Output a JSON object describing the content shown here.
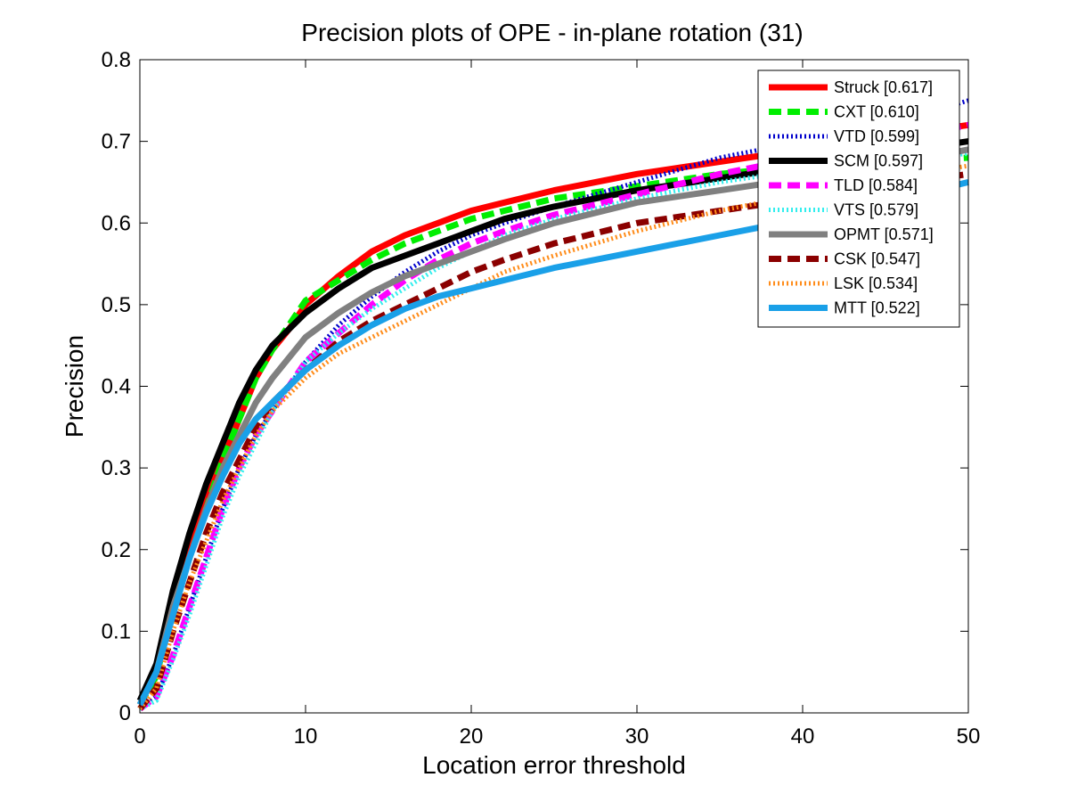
{
  "chart_data": {
    "type": "line",
    "title": "Precision plots of OPE - in-plane rotation (31)",
    "xlabel": "Location error threshold",
    "ylabel": "Precision",
    "xlim": [
      0,
      50
    ],
    "ylim": [
      0,
      0.8
    ],
    "xticks": [
      "0",
      "10",
      "20",
      "30",
      "40",
      "50"
    ],
    "yticks": [
      "0",
      "0.1",
      "0.2",
      "0.3",
      "0.4",
      "0.5",
      "0.6",
      "0.7",
      "0.8"
    ],
    "legend_position": "top-right",
    "grid": false,
    "x": [
      0,
      1,
      2,
      3,
      4,
      5,
      6,
      7,
      8,
      9,
      10,
      12,
      14,
      16,
      18,
      20,
      22,
      25,
      30,
      35,
      40,
      45,
      50
    ],
    "series": [
      {
        "name": "Struck [0.617]",
        "color": "#ff0000",
        "style": "solid",
        "width": 7,
        "values": [
          0.01,
          0.05,
          0.14,
          0.2,
          0.26,
          0.31,
          0.36,
          0.41,
          0.445,
          0.47,
          0.5,
          0.535,
          0.565,
          0.585,
          0.6,
          0.615,
          0.625,
          0.64,
          0.66,
          0.675,
          0.69,
          0.705,
          0.72
        ]
      },
      {
        "name": "CXT [0.610]",
        "color": "#00ee00",
        "style": "dashed",
        "width": 7,
        "values": [
          0.01,
          0.045,
          0.13,
          0.19,
          0.25,
          0.31,
          0.36,
          0.41,
          0.445,
          0.475,
          0.505,
          0.53,
          0.555,
          0.575,
          0.59,
          0.605,
          0.615,
          0.63,
          0.645,
          0.66,
          0.67,
          0.675,
          0.68
        ]
      },
      {
        "name": "VTD [0.599]",
        "color": "#0000cc",
        "style": "dotted",
        "width": 5,
        "values": [
          0.005,
          0.02,
          0.07,
          0.13,
          0.19,
          0.25,
          0.3,
          0.34,
          0.37,
          0.4,
          0.43,
          0.475,
          0.51,
          0.54,
          0.565,
          0.585,
          0.6,
          0.62,
          0.65,
          0.68,
          0.7,
          0.72,
          0.75
        ]
      },
      {
        "name": "SCM [0.597]",
        "color": "#000000",
        "style": "solid",
        "width": 7,
        "values": [
          0.015,
          0.06,
          0.15,
          0.22,
          0.28,
          0.33,
          0.38,
          0.42,
          0.45,
          0.47,
          0.49,
          0.52,
          0.545,
          0.56,
          0.575,
          0.59,
          0.605,
          0.62,
          0.64,
          0.655,
          0.67,
          0.685,
          0.7
        ]
      },
      {
        "name": "TLD [0.584]",
        "color": "#ff00ff",
        "style": "dashed",
        "width": 7,
        "values": [
          0.005,
          0.02,
          0.07,
          0.13,
          0.19,
          0.25,
          0.3,
          0.34,
          0.37,
          0.4,
          0.43,
          0.465,
          0.5,
          0.53,
          0.555,
          0.575,
          0.59,
          0.61,
          0.635,
          0.66,
          0.68,
          0.7,
          0.72
        ]
      },
      {
        "name": "VTS [0.579]",
        "color": "#33eeee",
        "style": "dotted",
        "width": 5,
        "values": [
          0.005,
          0.015,
          0.065,
          0.12,
          0.18,
          0.24,
          0.29,
          0.33,
          0.37,
          0.4,
          0.43,
          0.465,
          0.495,
          0.52,
          0.545,
          0.565,
          0.585,
          0.605,
          0.63,
          0.65,
          0.665,
          0.675,
          0.685
        ]
      },
      {
        "name": "OPMT [0.571]",
        "color": "#808080",
        "style": "solid",
        "width": 7,
        "values": [
          0.01,
          0.05,
          0.13,
          0.19,
          0.25,
          0.3,
          0.34,
          0.38,
          0.41,
          0.435,
          0.46,
          0.49,
          0.515,
          0.535,
          0.55,
          0.565,
          0.58,
          0.6,
          0.625,
          0.64,
          0.655,
          0.67,
          0.69
        ]
      },
      {
        "name": "CSK [0.547]",
        "color": "#8b0000",
        "style": "dashed",
        "width": 7,
        "values": [
          0.005,
          0.03,
          0.1,
          0.16,
          0.22,
          0.27,
          0.31,
          0.35,
          0.38,
          0.4,
          0.42,
          0.455,
          0.48,
          0.5,
          0.52,
          0.54,
          0.555,
          0.575,
          0.6,
          0.615,
          0.63,
          0.645,
          0.66
        ]
      },
      {
        "name": "LSK [0.534]",
        "color": "#ff8c1a",
        "style": "dotted",
        "width": 5,
        "values": [
          0.005,
          0.03,
          0.1,
          0.16,
          0.21,
          0.26,
          0.3,
          0.34,
          0.37,
          0.39,
          0.41,
          0.44,
          0.46,
          0.48,
          0.5,
          0.52,
          0.54,
          0.56,
          0.59,
          0.615,
          0.635,
          0.655,
          0.67
        ]
      },
      {
        "name": "MTT [0.522]",
        "color": "#1aa0e8",
        "style": "solid",
        "width": 7,
        "values": [
          0.01,
          0.05,
          0.12,
          0.19,
          0.245,
          0.29,
          0.33,
          0.36,
          0.38,
          0.4,
          0.42,
          0.45,
          0.475,
          0.495,
          0.51,
          0.52,
          0.53,
          0.545,
          0.565,
          0.585,
          0.605,
          0.625,
          0.65
        ]
      }
    ]
  }
}
